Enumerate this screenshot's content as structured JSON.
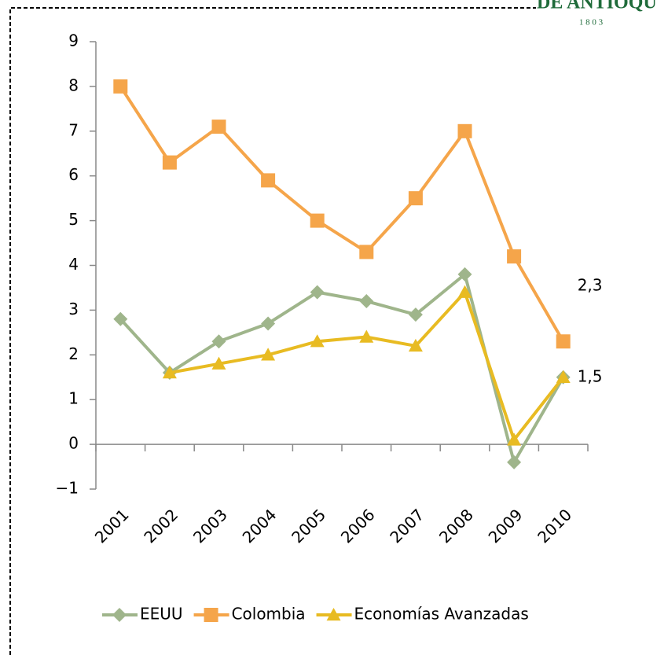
{
  "logo": {
    "name": "DE ANTIOQU",
    "year": "1 8 0 3"
  },
  "chart_data": {
    "type": "line",
    "categories": [
      "2001",
      "2002",
      "2003",
      "2004",
      "2005",
      "2006",
      "2007",
      "2008",
      "2009",
      "2010"
    ],
    "series": [
      {
        "name": "EEUU",
        "color": "#9fb58b",
        "marker": "diamond",
        "values": [
          2.8,
          1.6,
          2.3,
          2.7,
          3.4,
          3.2,
          2.9,
          3.8,
          -0.4,
          1.5
        ]
      },
      {
        "name": "Colombia",
        "color": "#f5a54a",
        "marker": "square",
        "values": [
          8.0,
          6.3,
          7.1,
          5.9,
          5.0,
          4.3,
          5.5,
          7.0,
          4.2,
          2.3
        ],
        "value_labels": [
          null,
          null,
          null,
          null,
          null,
          null,
          null,
          null,
          null,
          "2,3"
        ]
      },
      {
        "name": "Economías Avanzadas",
        "color": "#e8bb22",
        "marker": "triangle",
        "values": [
          null,
          1.6,
          1.8,
          2.0,
          2.3,
          2.4,
          2.2,
          3.4,
          0.1,
          1.5
        ],
        "value_labels": [
          null,
          null,
          null,
          null,
          null,
          null,
          null,
          null,
          null,
          "1,5"
        ]
      }
    ],
    "ylim": [
      -1,
      9
    ],
    "yticks": [
      {
        "value": -1,
        "label": "−1"
      },
      0,
      1,
      2,
      3,
      4,
      5,
      6,
      7,
      8,
      9
    ],
    "legend": "bottom"
  }
}
